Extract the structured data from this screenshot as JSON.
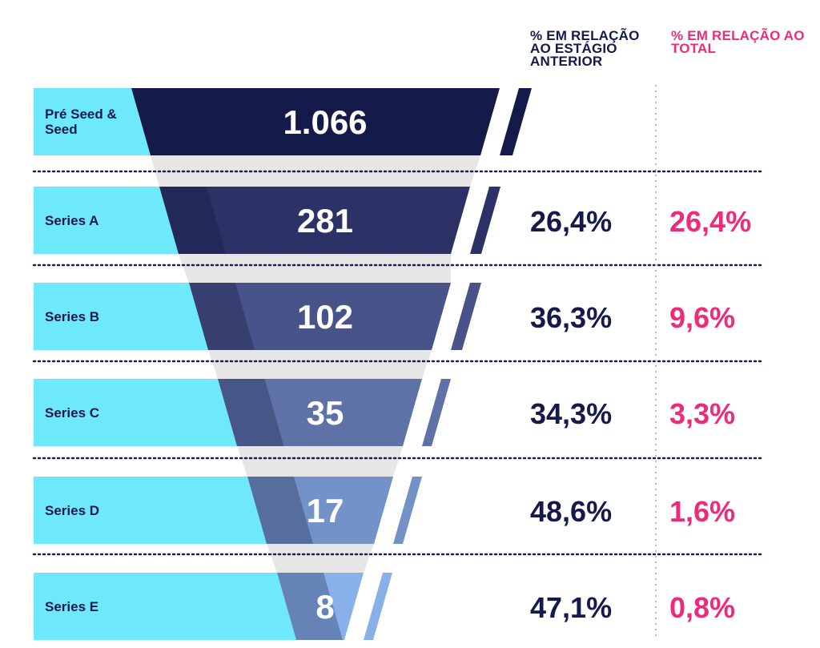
{
  "headers": {
    "pct_previous": "% EM RELAÇÃO AO ESTÁGIO ANTERIOR",
    "pct_total": "% EM RELAÇÃO AO TOTAL"
  },
  "colors": {
    "label_bg": "#6ee8fb",
    "navy": "#141a4a",
    "pink": "#ee2a7b",
    "stage_fills": [
      "#141a4a",
      "#2c3266",
      "#48538a",
      "#5e72a8",
      "#7393c8",
      "#8ab0ea"
    ],
    "shadow": "#e6e6e6",
    "divider": "#1d2350",
    "vertical_divider": "#bbbbbb"
  },
  "chart_data": {
    "type": "funnel",
    "title": "",
    "value_unit": "count",
    "categories": [
      "Pré Seed & Seed",
      "Series A",
      "Series B",
      "Series C",
      "Series D",
      "Series E"
    ],
    "values": [
      1066,
      281,
      102,
      35,
      17,
      8
    ],
    "value_labels": [
      "1.066",
      "281",
      "102",
      "35",
      "17",
      "8"
    ],
    "pct_previous": [
      "",
      "26,4%",
      "36,3%",
      "34,3%",
      "48,6%",
      "47,1%"
    ],
    "pct_total": [
      "",
      "26,4%",
      "9,6%",
      "3,3%",
      "1,6%",
      "0,8%"
    ],
    "series": [
      {
        "name": "% em relação ao estágio anterior",
        "values": [
          null,
          26.4,
          36.3,
          34.3,
          48.6,
          47.1
        ]
      },
      {
        "name": "% em relação ao total",
        "values": [
          null,
          26.4,
          9.6,
          3.3,
          1.6,
          0.8
        ]
      }
    ]
  }
}
